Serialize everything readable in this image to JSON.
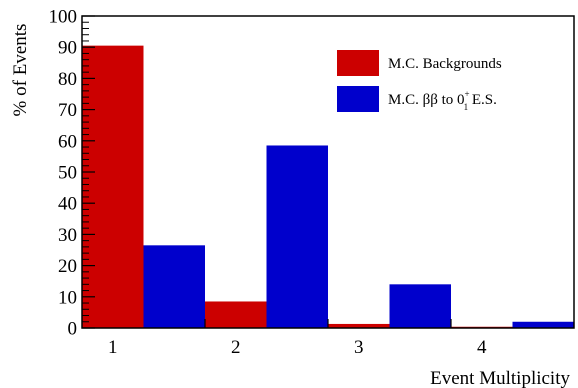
{
  "chart_data": {
    "type": "bar",
    "categories": [
      "1",
      "2",
      "3",
      "4"
    ],
    "series": [
      {
        "name": "M.C. Backgrounds",
        "color": "#cc0000",
        "values": [
          90.5,
          8.5,
          1.3,
          0.4
        ]
      },
      {
        "name_parts": {
          "pre": "M.C. ββ to 0",
          "sup": "+",
          "sub": "1",
          "post": " E.S."
        },
        "color": "#0000cc",
        "values": [
          26.5,
          58.5,
          14,
          2
        ]
      }
    ],
    "xlabel": "Event Multiplicity",
    "ylabel": "% of Events",
    "ylim": [
      0,
      100
    ],
    "yticks": [
      "0",
      "10",
      "20",
      "30",
      "40",
      "50",
      "60",
      "70",
      "80",
      "90",
      "100"
    ],
    "grid": false,
    "legend_position": "top-right"
  }
}
